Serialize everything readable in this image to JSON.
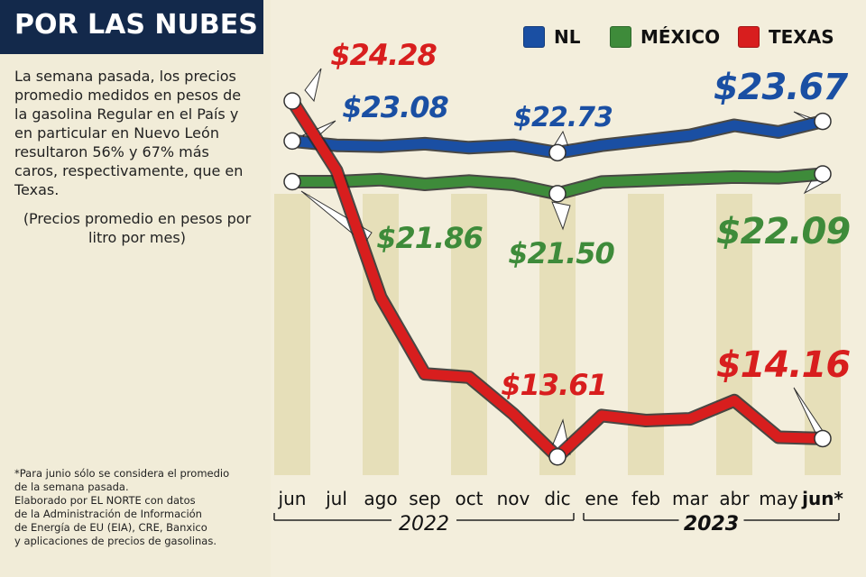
{
  "header": {
    "title": "POR LAS NUBES"
  },
  "intro_text": "La semana pasada, los precios promedio medidos en pesos de la gasolina Regular en el País y en particular en Nuevo León resultaron 56% y 67% más caros, respectivamente, que en Texas.",
  "unit_note": "(Precios promedio en pesos por litro por mes)",
  "footnote_lines": [
    "*Para junio sólo se considera el promedio",
    "de la semana pasada.",
    "Elaborado por EL NORTE con datos",
    "de la Administración de Información",
    "de Energía de EU (EIA), CRE, Banxico",
    "y aplicaciones de precios de gasolinas."
  ],
  "colors": {
    "NL": "#1a4fa3",
    "MÉXICO": "#3e8b3a",
    "TEXAS": "#d81e1e",
    "title_bg": "#13294b",
    "band": "#e6dfb9"
  },
  "chart_data": {
    "type": "line",
    "categories": [
      "jun",
      "jul",
      "ago",
      "sep",
      "oct",
      "nov",
      "dic",
      "ene",
      "feb",
      "mar",
      "abr",
      "may",
      "jun*"
    ],
    "year_groups": [
      {
        "label": "2022",
        "from_index": 0,
        "to_index": 6
      },
      {
        "label": "2023",
        "from_index": 7,
        "to_index": 12
      }
    ],
    "series": [
      {
        "name": "NL",
        "values": [
          23.08,
          22.95,
          22.92,
          23.0,
          22.88,
          22.95,
          22.73,
          22.95,
          23.1,
          23.25,
          23.55,
          23.35,
          23.67
        ]
      },
      {
        "name": "MÉXICO",
        "values": [
          21.86,
          21.86,
          21.92,
          21.78,
          21.88,
          21.78,
          21.5,
          21.85,
          21.9,
          21.95,
          22.0,
          21.98,
          22.09
        ]
      },
      {
        "name": "TEXAS",
        "values": [
          24.28,
          22.2,
          18.4,
          16.1,
          16.0,
          14.9,
          13.61,
          14.85,
          14.7,
          14.75,
          15.3,
          14.2,
          14.16
        ]
      }
    ],
    "annotations": [
      {
        "series": "TEXAS",
        "index": 0,
        "label": "$24.28"
      },
      {
        "series": "NL",
        "index": 0,
        "label": "$23.08"
      },
      {
        "series": "MÉXICO",
        "index": 0,
        "label": "$21.86"
      },
      {
        "series": "NL",
        "index": 6,
        "label": "$22.73"
      },
      {
        "series": "MÉXICO",
        "index": 6,
        "label": "$21.50"
      },
      {
        "series": "TEXAS",
        "index": 6,
        "label": "$13.61"
      },
      {
        "series": "NL",
        "index": 12,
        "label": "$23.67"
      },
      {
        "series": "MÉXICO",
        "index": 12,
        "label": "$22.09"
      },
      {
        "series": "TEXAS",
        "index": 12,
        "label": "$14.16"
      }
    ],
    "legend": {
      "position": "top-right",
      "entries": [
        "NL",
        "MÉXICO",
        "TEXAS"
      ]
    },
    "ylim": [
      13,
      25
    ],
    "grid": false
  }
}
